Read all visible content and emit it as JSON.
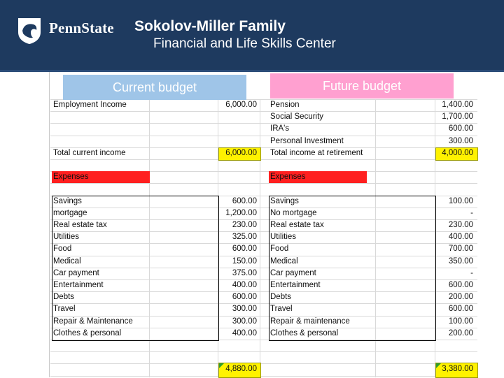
{
  "header": {
    "brand": "PennState",
    "title_line1": "Sokolov-Miller Family",
    "title_line2": "Financial and Life Skills Center"
  },
  "tabs": {
    "current": "Current budget",
    "future": "Future budget"
  },
  "current": {
    "income_rows": [
      {
        "label": "Employment Income",
        "value": "6,000.00"
      }
    ],
    "total_label": "Total current income",
    "total_value": "6,000.00",
    "expenses_label": "Expenses",
    "expenses": [
      {
        "label": "Savings",
        "value": "600.00"
      },
      {
        "label": "mortgage",
        "value": "1,200.00"
      },
      {
        "label": "Real estate tax",
        "value": "230.00"
      },
      {
        "label": "Utilities",
        "value": "325.00"
      },
      {
        "label": "Food",
        "value": "600.00"
      },
      {
        "label": "Medical",
        "value": "150.00"
      },
      {
        "label": "Car payment",
        "value": "375.00"
      },
      {
        "label": "Entertainment",
        "value": "400.00"
      },
      {
        "label": "Debts",
        "value": "600.00"
      },
      {
        "label": "Travel",
        "value": "300.00"
      },
      {
        "label": "Repair & Maintenance",
        "value": "300.00"
      },
      {
        "label": "Clothes & personal",
        "value": "400.00"
      }
    ],
    "expense_total": "4,880.00"
  },
  "future": {
    "income_rows": [
      {
        "label": "Pension",
        "value": "1,400.00"
      },
      {
        "label": "Social Security",
        "value": "1,700.00"
      },
      {
        "label": "IRA's",
        "value": "600.00"
      },
      {
        "label": "Personal Investment",
        "value": "300.00"
      }
    ],
    "total_label": "Total income at retirement",
    "total_value": "4,000.00",
    "expenses_label": "Expenses",
    "expenses": [
      {
        "label": "Savings",
        "value": "100.00"
      },
      {
        "label": "No mortgage",
        "value": "-"
      },
      {
        "label": "Real estate tax",
        "value": "230.00"
      },
      {
        "label": "Utilities",
        "value": "400.00"
      },
      {
        "label": "Food",
        "value": "700.00"
      },
      {
        "label": "Medical",
        "value": "350.00"
      },
      {
        "label": "Car payment",
        "value": "-"
      },
      {
        "label": "Entertainment",
        "value": "600.00"
      },
      {
        "label": "Debts",
        "value": "200.00"
      },
      {
        "label": "Travel",
        "value": "600.00"
      },
      {
        "label": "Repair & maintenance",
        "value": "100.00"
      },
      {
        "label": "Clothes & personal",
        "value": "200.00"
      }
    ],
    "expense_total": "3,380.00"
  },
  "colors": {
    "header_bg": "#1e3a5f",
    "current_tab": "#9fc5e8",
    "future_tab": "#ffa0d0",
    "highlight": "#fff200",
    "expenses_red": "#ff2020"
  }
}
